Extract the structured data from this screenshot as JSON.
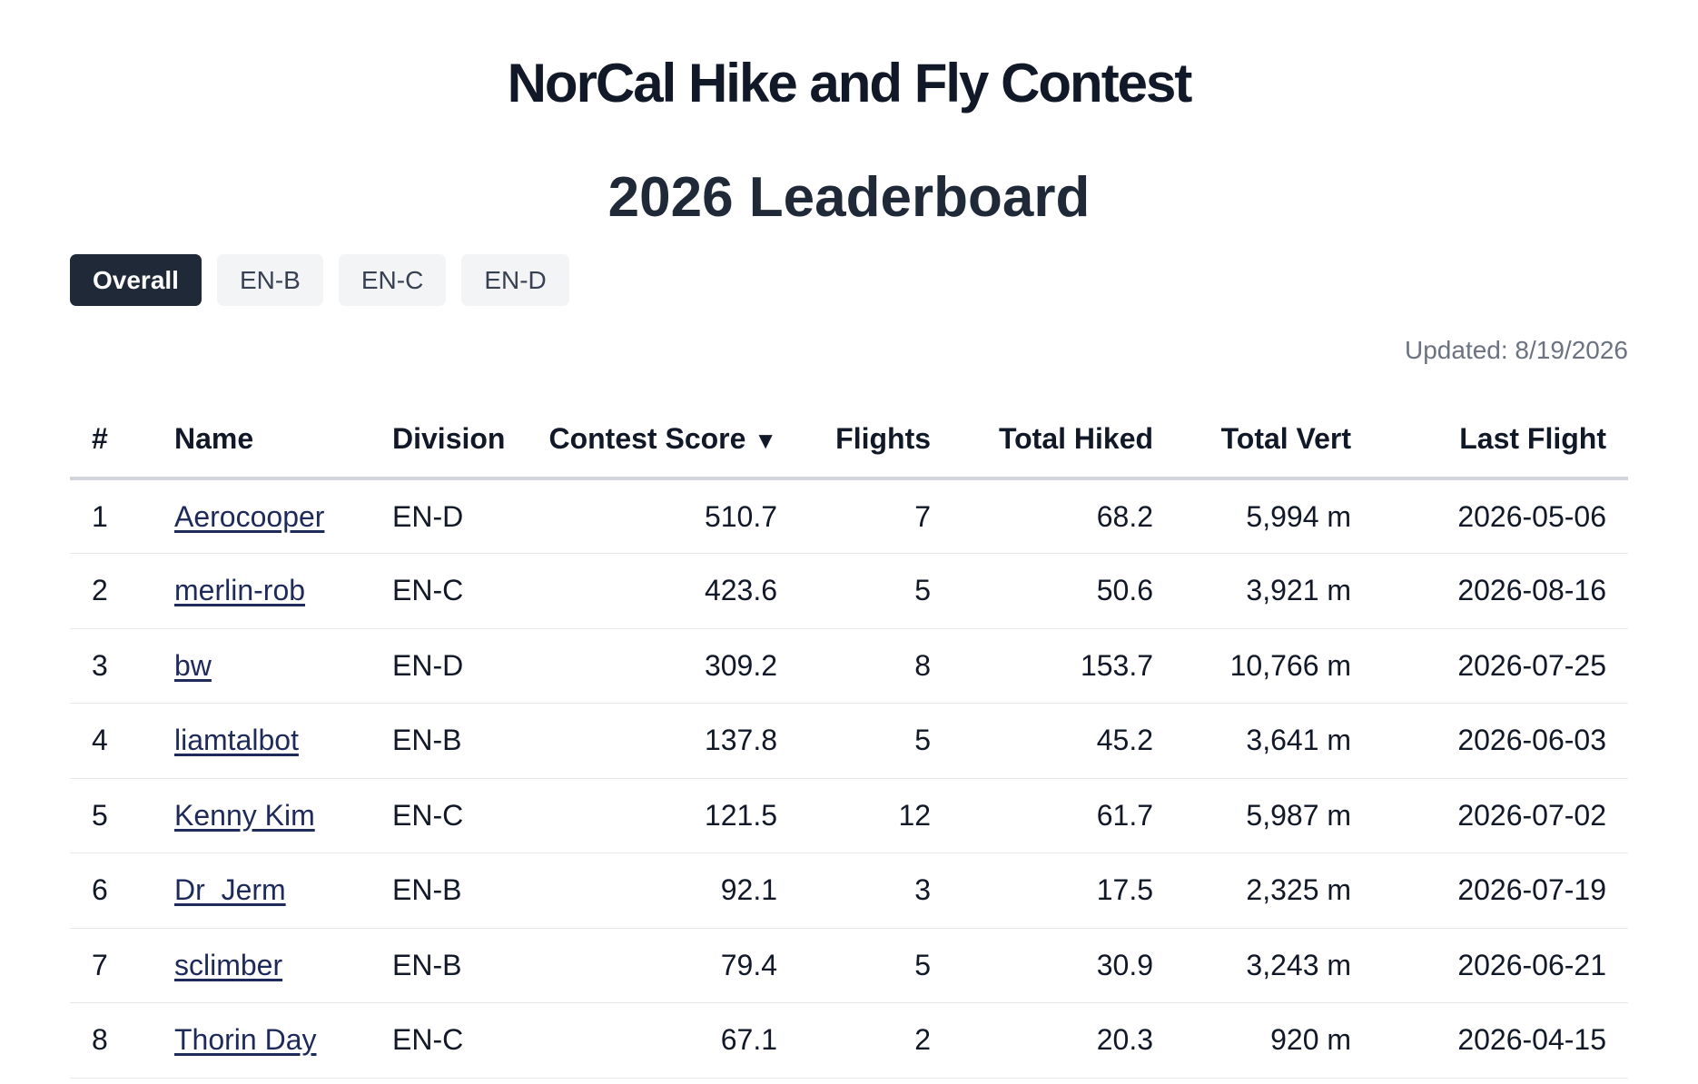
{
  "header": {
    "contest_title": "NorCal Hike and Fly Contest",
    "board_title": "2026 Leaderboard"
  },
  "tabs": [
    {
      "label": "Overall",
      "active": true
    },
    {
      "label": "EN-B",
      "active": false
    },
    {
      "label": "EN-C",
      "active": false
    },
    {
      "label": "EN-D",
      "active": false
    }
  ],
  "updated": "Updated: 8/19/2026",
  "table": {
    "columns": {
      "rank": "#",
      "name": "Name",
      "division": "Division",
      "score": "Contest Score",
      "score_sort_indicator": "▼",
      "flights": "Flights",
      "hiked": "Total Hiked",
      "vert": "Total Vert",
      "last_flight": "Last Flight"
    },
    "rows": [
      {
        "rank": "1",
        "name": "Aerocooper",
        "division": "EN-D",
        "score": "510.7",
        "flights": "7",
        "hiked": "68.2",
        "vert": "5,994 m",
        "last_flight": "2026-05-06"
      },
      {
        "rank": "2",
        "name": "merlin-rob",
        "division": "EN-C",
        "score": "423.6",
        "flights": "5",
        "hiked": "50.6",
        "vert": "3,921 m",
        "last_flight": "2026-08-16"
      },
      {
        "rank": "3",
        "name": "bw",
        "division": "EN-D",
        "score": "309.2",
        "flights": "8",
        "hiked": "153.7",
        "vert": "10,766 m",
        "last_flight": "2026-07-25"
      },
      {
        "rank": "4",
        "name": "liamtalbot",
        "division": "EN-B",
        "score": "137.8",
        "flights": "5",
        "hiked": "45.2",
        "vert": "3,641 m",
        "last_flight": "2026-06-03"
      },
      {
        "rank": "5",
        "name": "Kenny Kim",
        "division": "EN-C",
        "score": "121.5",
        "flights": "12",
        "hiked": "61.7",
        "vert": "5,987 m",
        "last_flight": "2026-07-02"
      },
      {
        "rank": "6",
        "name": "Dr_Jerm",
        "division": "EN-B",
        "score": "92.1",
        "flights": "3",
        "hiked": "17.5",
        "vert": "2,325 m",
        "last_flight": "2026-07-19"
      },
      {
        "rank": "7",
        "name": "sclimber",
        "division": "EN-B",
        "score": "79.4",
        "flights": "5",
        "hiked": "30.9",
        "vert": "3,243 m",
        "last_flight": "2026-06-21"
      },
      {
        "rank": "8",
        "name": "Thorin Day",
        "division": "EN-C",
        "score": "67.1",
        "flights": "2",
        "hiked": "20.3",
        "vert": "920 m",
        "last_flight": "2026-04-15"
      }
    ]
  }
}
